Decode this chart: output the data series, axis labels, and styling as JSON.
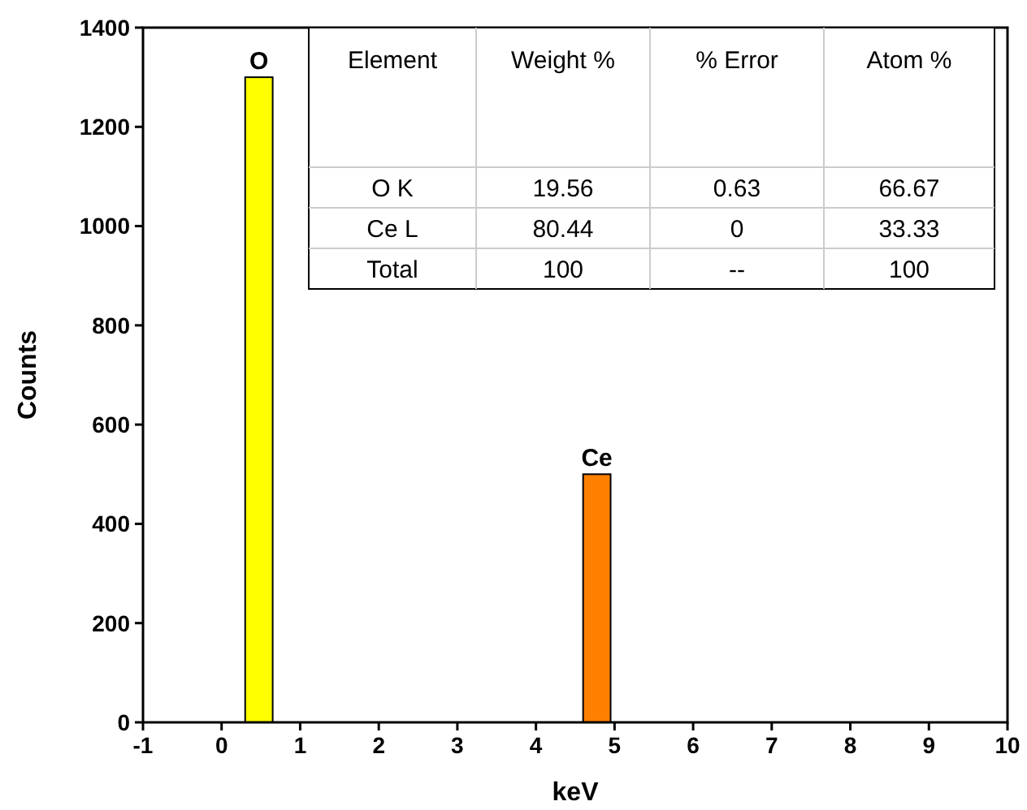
{
  "chart_data": [
    {
      "type": "bar",
      "x": [
        0.475,
        4.775
      ],
      "values": [
        1300,
        500
      ],
      "colors": [
        "#ffff00",
        "#ff8000"
      ],
      "xlabel": "keV",
      "ylabel": "Counts",
      "xlim": [
        -1,
        10
      ],
      "xticks": [
        -1,
        0,
        1,
        2,
        3,
        4,
        5,
        6,
        7,
        8,
        9,
        10
      ],
      "ylim": [
        0,
        1400
      ],
      "yticks": [
        0,
        200,
        400,
        600,
        800,
        1000,
        1200,
        1400
      ],
      "annotations": [
        {
          "text": "O",
          "x": 0.475,
          "y": 1300
        },
        {
          "text": "Ce",
          "x": 4.775,
          "y": 500
        }
      ]
    },
    {
      "type": "other",
      "categories": [
        "Element",
        "Weight %",
        "% Error",
        "Atom %"
      ],
      "y_categories": [
        "O K",
        "Ce L",
        "Total"
      ],
      "cell_labels": [
        [
          "19.56",
          "0.63",
          "66.67"
        ],
        [
          "80.44",
          "0",
          "33.33"
        ],
        [
          "100",
          "--",
          "100"
        ]
      ]
    }
  ]
}
